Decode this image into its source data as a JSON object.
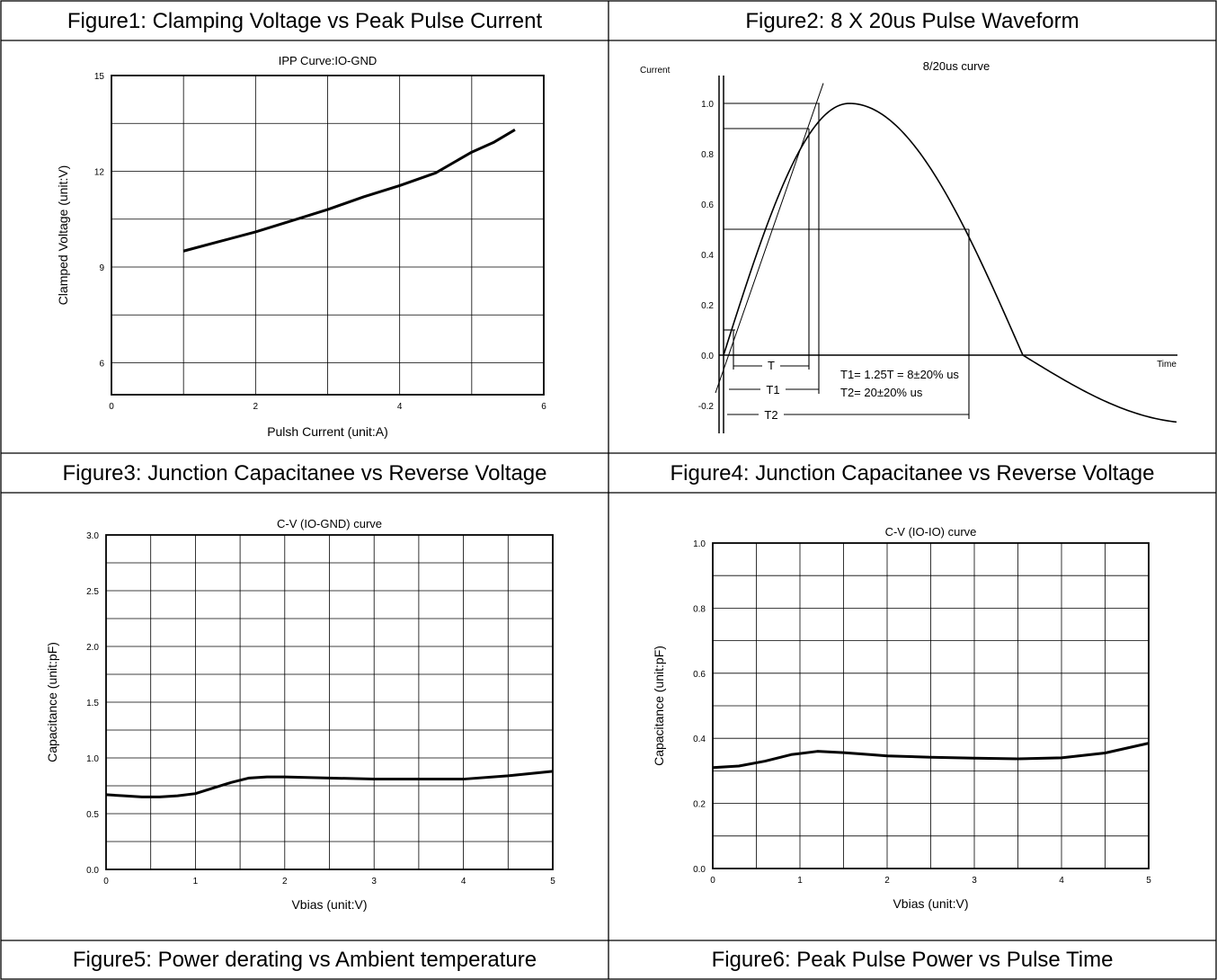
{
  "headers": {
    "fig1": "Figure1: Clamping Voltage vs Peak Pulse Current",
    "fig2": "Figure2: 8 X 20us Pulse Waveform",
    "fig3": "Figure3: Junction Capacitanee vs Reverse Voltage",
    "fig4": "Figure4: Junction Capacitanee vs Reverse Voltage",
    "fig5": "Figure5: Power derating vs Ambient temperature",
    "fig6": "Figure6: Peak Pulse Power vs Pulse Time"
  },
  "chart_data": [
    {
      "id": "fig1",
      "type": "line",
      "title": "IPP Curve:IO-GND",
      "xlabel": "Pulsh Current (unit:A)",
      "ylabel": "Clamped Voltage (unit:V)",
      "xlim": [
        0,
        6
      ],
      "ylim": [
        5,
        15
      ],
      "xticks": [
        0,
        2,
        4,
        6
      ],
      "yticks": [
        6,
        9,
        12,
        15
      ],
      "x_gridlines": [
        1,
        2,
        3,
        4,
        5
      ],
      "y_gridlines": [
        6,
        7.5,
        9,
        10.5,
        12,
        13.5
      ],
      "grid": true,
      "series": [
        {
          "x": [
            1.0,
            1.5,
            2.0,
            2.5,
            3.0,
            3.5,
            4.0,
            4.5,
            5.0,
            5.3,
            5.6
          ],
          "y": [
            9.5,
            9.8,
            10.1,
            10.45,
            10.8,
            11.2,
            11.55,
            11.95,
            12.6,
            12.9,
            13.3
          ]
        }
      ]
    },
    {
      "id": "fig2",
      "type": "line",
      "title": "8/20us curve",
      "xlabel": "Time",
      "ylabel": "Current",
      "ylim": [
        -0.25,
        1.1
      ],
      "yticks": [
        "1.0",
        "0.8",
        "0.6",
        "0.4",
        "0.2",
        "0.0",
        "-0.2"
      ],
      "annotations": [
        "T",
        "T1",
        "T2",
        "T1= 1.25T = 8±20% us",
        "T2= 20±20% us"
      ],
      "markers": {
        "peak": 1.0,
        "level_high": 0.9,
        "level_low": 0.1,
        "half": 0.5
      }
    },
    {
      "id": "fig3",
      "type": "line",
      "title": "C-V (IO-GND) curve",
      "xlabel": "Vbias (unit:V)",
      "ylabel": "Capacitance (unit:pF)",
      "xlim": [
        0,
        5
      ],
      "ylim": [
        0,
        3
      ],
      "xticks": [
        "0",
        "1",
        "2",
        "3",
        "4",
        "5"
      ],
      "yticks": [
        "0.0",
        "0.5",
        "1.0",
        "1.5",
        "2.0",
        "2.5",
        "3.0"
      ],
      "grid": true,
      "series": [
        {
          "x": [
            0,
            0.2,
            0.4,
            0.6,
            0.8,
            1.0,
            1.2,
            1.4,
            1.6,
            1.8,
            2.0,
            2.5,
            3.0,
            3.5,
            4.0,
            4.5,
            5.0
          ],
          "y": [
            0.67,
            0.66,
            0.65,
            0.65,
            0.66,
            0.68,
            0.73,
            0.78,
            0.82,
            0.83,
            0.83,
            0.82,
            0.81,
            0.81,
            0.81,
            0.84,
            0.88
          ]
        }
      ]
    },
    {
      "id": "fig4",
      "type": "line",
      "title": "C-V (IO-IO) curve",
      "xlabel": "Vbias (unit:V)",
      "ylabel": "Capacitance (unit:pF)",
      "xlim": [
        0,
        5
      ],
      "ylim": [
        0,
        1.0
      ],
      "xticks": [
        "0",
        "1",
        "2",
        "3",
        "4",
        "5"
      ],
      "yticks": [
        "0.0",
        "0.2",
        "0.4",
        "0.6",
        "0.8",
        "1.0"
      ],
      "grid": true,
      "series": [
        {
          "x": [
            0,
            0.3,
            0.6,
            0.9,
            1.2,
            1.5,
            1.8,
            2.0,
            2.5,
            3.0,
            3.5,
            4.0,
            4.5,
            5.0
          ],
          "y": [
            0.31,
            0.315,
            0.33,
            0.35,
            0.36,
            0.356,
            0.35,
            0.346,
            0.342,
            0.339,
            0.337,
            0.34,
            0.355,
            0.385
          ]
        }
      ]
    }
  ]
}
